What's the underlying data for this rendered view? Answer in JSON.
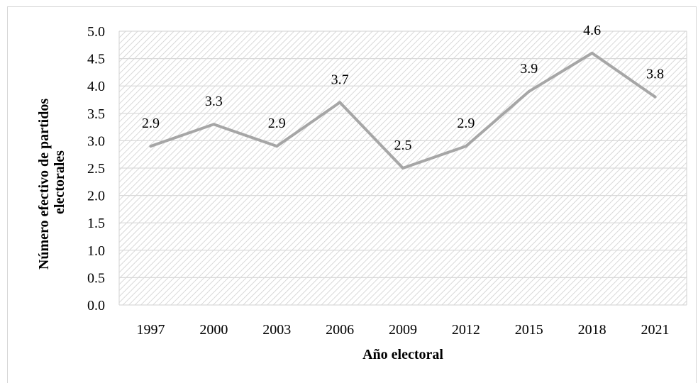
{
  "chart_data": {
    "type": "line",
    "title": "",
    "xlabel": "Año electoral",
    "ylabel_lines": [
      "Número efectivo de partidos",
      "electorales"
    ],
    "categories": [
      "1997",
      "2000",
      "2003",
      "2006",
      "2009",
      "2012",
      "2015",
      "2018",
      "2021"
    ],
    "series": [
      {
        "values": [
          2.9,
          3.3,
          2.9,
          3.7,
          2.5,
          2.9,
          3.9,
          4.6,
          3.8
        ],
        "color": "#a6a6a6"
      }
    ],
    "data_labels": [
      "2.9",
      "3.3",
      "2.9",
      "3.7",
      "2.5",
      "2.9",
      "3.9",
      "4.6",
      "3.8"
    ],
    "ylim": [
      0,
      5
    ],
    "yticks": [
      "0.0",
      "0.5",
      "1.0",
      "1.5",
      "2.0",
      "2.5",
      "3.0",
      "3.5",
      "4.0",
      "4.5",
      "5.0"
    ],
    "grid": true,
    "legend": "none",
    "plot_background": "hatched",
    "gridline_color": "#d9d9d9"
  }
}
